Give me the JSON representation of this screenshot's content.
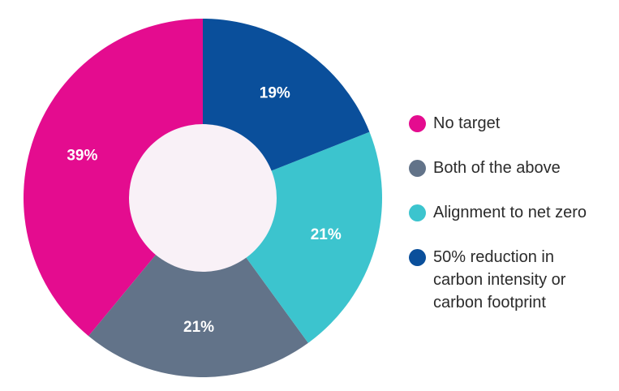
{
  "chart_data": {
    "type": "pie",
    "donut": true,
    "categories": [
      "No target",
      "Both of the above",
      "Alignment to net zero",
      "50% reduction in carbon intensity or carbon footprint"
    ],
    "values": [
      39,
      21,
      21,
      19
    ],
    "value_labels": [
      "39%",
      "21%",
      "21%",
      "19%"
    ],
    "colors": [
      "#e40c8f",
      "#627389",
      "#3cc4ce",
      "#0a4f9b"
    ],
    "hole_color": "#f9f1f7",
    "legend_position": "right"
  }
}
